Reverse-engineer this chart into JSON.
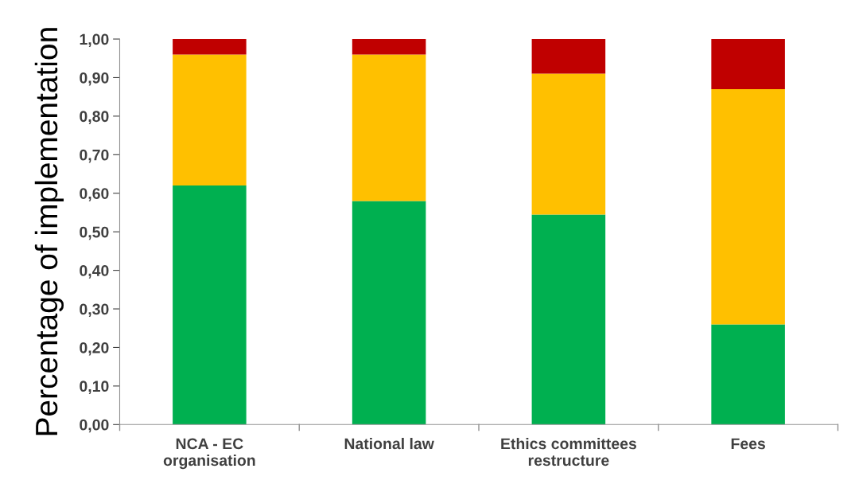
{
  "chart_data": {
    "type": "bar",
    "stacked": true,
    "ylabel": "Percentage of implementation",
    "categories": [
      "NCA - EC\norganisation",
      "National law",
      "Ethics committees\nrestructure",
      "Fees"
    ],
    "series": [
      {
        "color": "#00b050",
        "values": [
          0.62,
          0.58,
          0.545,
          0.26
        ]
      },
      {
        "color": "#ffc000",
        "values": [
          0.34,
          0.38,
          0.365,
          0.61
        ]
      },
      {
        "color": "#c00000",
        "values": [
          0.04,
          0.04,
          0.09,
          0.13
        ]
      }
    ],
    "ylim": [
      0,
      1
    ],
    "yticks": [
      {
        "value": 0,
        "label": "0,00"
      },
      {
        "value": 0.1,
        "label": "0,10"
      },
      {
        "value": 0.2,
        "label": "0,20"
      },
      {
        "value": 0.3,
        "label": "0,30"
      },
      {
        "value": 0.4,
        "label": "0,40"
      },
      {
        "value": 0.5,
        "label": "0,50"
      },
      {
        "value": 0.6,
        "label": "0,60"
      },
      {
        "value": 0.7,
        "label": "0,70"
      },
      {
        "value": 0.8,
        "label": "0,80"
      },
      {
        "value": 0.9,
        "label": "0,90"
      },
      {
        "value": 1.0,
        "label": "1,00"
      }
    ],
    "grid": false,
    "legend": false
  }
}
